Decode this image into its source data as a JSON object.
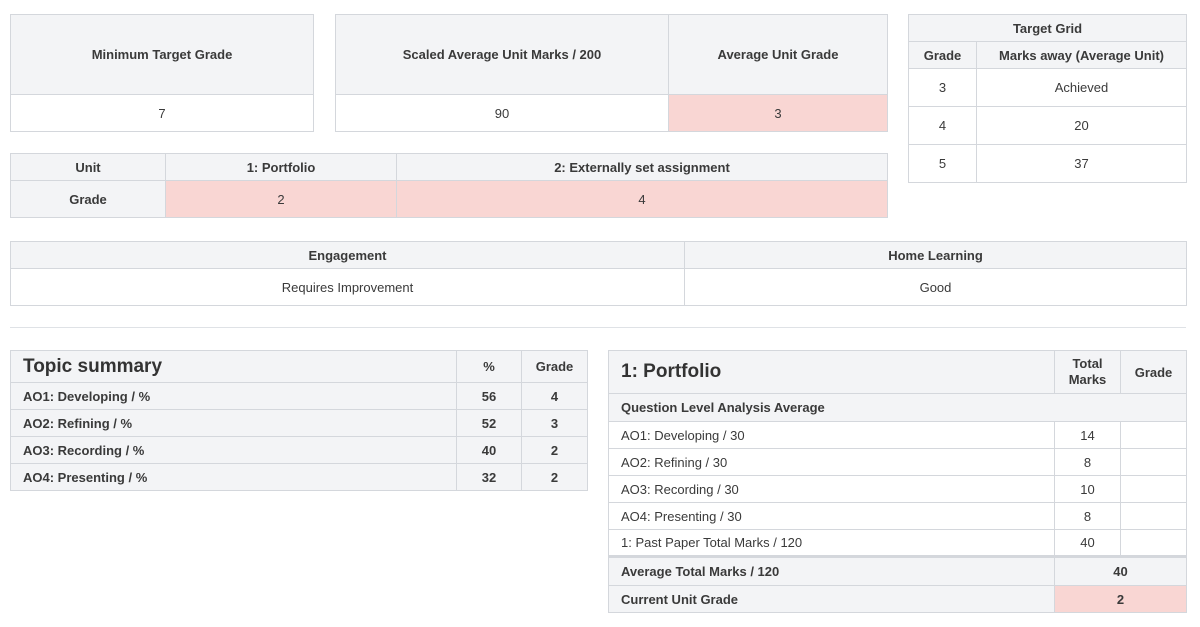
{
  "summary": {
    "min_target_label": "Minimum Target Grade",
    "min_target_value": "7",
    "scaled_label": "Scaled Average Unit Marks / 200",
    "scaled_value": "90",
    "avg_grade_label": "Average Unit Grade",
    "avg_grade_value": "3"
  },
  "target_grid": {
    "title": "Target Grid",
    "col_grade": "Grade",
    "col_marks": "Marks away (Average Unit)",
    "rows": [
      {
        "grade": "3",
        "marks": "Achieved"
      },
      {
        "grade": "4",
        "marks": "20"
      },
      {
        "grade": "5",
        "marks": "37"
      }
    ]
  },
  "unit_table": {
    "unit_label": "Unit",
    "unit1": "1: Portfolio",
    "unit2": "2: Externally set assignment",
    "grade_label": "Grade",
    "grade1": "2",
    "grade2": "4"
  },
  "engagement": {
    "engagement_label": "Engagement",
    "engagement_value": "Requires Improvement",
    "home_label": "Home Learning",
    "home_value": "Good"
  },
  "topic_summary": {
    "title": "Topic summary",
    "col_pct": "%",
    "col_grade": "Grade",
    "rows": [
      {
        "label": "AO1: Developing / %",
        "pct": "56",
        "grade": "4"
      },
      {
        "label": "AO2: Refining / %",
        "pct": "52",
        "grade": "3"
      },
      {
        "label": "AO3: Recording / %",
        "pct": "40",
        "grade": "2"
      },
      {
        "label": "AO4: Presenting / %",
        "pct": "32",
        "grade": "2"
      }
    ]
  },
  "portfolio": {
    "title": "1: Portfolio",
    "col_total": "Total Marks",
    "col_grade": "Grade",
    "qla_label": "Question Level Analysis Average",
    "rows": [
      {
        "label": "AO1: Developing / 30",
        "marks": "14"
      },
      {
        "label": "AO2: Refining / 30",
        "marks": "8"
      },
      {
        "label": "AO3: Recording / 30",
        "marks": "10"
      },
      {
        "label": "AO4: Presenting / 30",
        "marks": "8"
      },
      {
        "label": "1: Past Paper Total Marks / 120",
        "marks": "40"
      }
    ],
    "avg_total_label": "Average Total Marks / 120",
    "avg_total_value": "40",
    "current_grade_label": "Current Unit Grade",
    "current_grade_value": "2"
  }
}
